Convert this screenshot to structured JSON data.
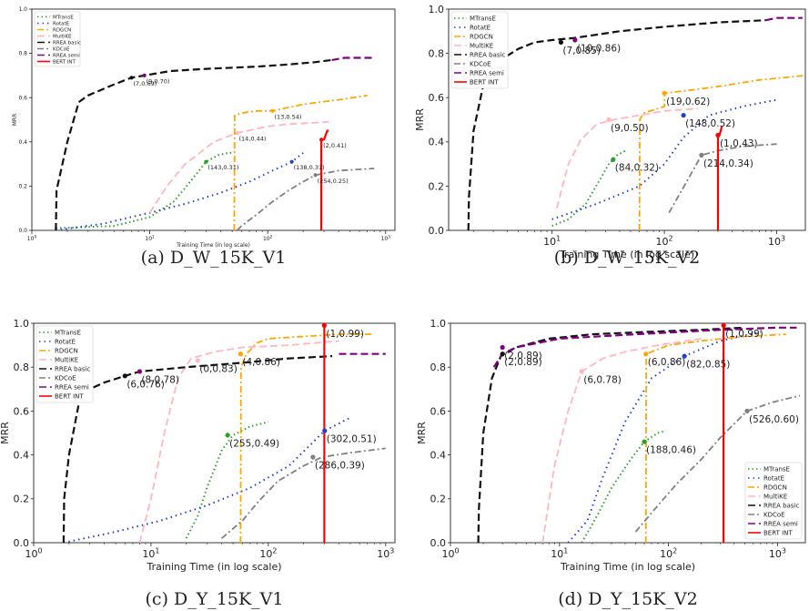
{
  "legend_labels": [
    "MTransE",
    "RotatE",
    "RDGCN",
    "MultiKE",
    "RREA basic",
    "KDCoE",
    "RREA semi",
    "BERT INT"
  ],
  "series_colors": {
    "MTransE": "#2ca02c",
    "RotatE": "#1f3fd6",
    "RDGCN": "#ffa500",
    "MultiKE": "#ffb6c1",
    "RREA basic": "#111111",
    "KDCoE": "#808080",
    "RREA semi": "#800080",
    "BERT INT": "#ff0000"
  },
  "chart_data": [
    {
      "type": "line",
      "caption": "(a) D_W_15K_V1",
      "xlabel": "Training Time (in log scale)",
      "ylabel": "MRR",
      "xscale": "log",
      "xlim": [
        1,
        1200
      ],
      "ylim": [
        0,
        1.0
      ],
      "yticks": [
        "0.0",
        "0.2",
        "0.4",
        "0.6",
        "0.8",
        "1.0"
      ],
      "xticks": [
        "10^0",
        "10^1",
        "10^2",
        "10^3"
      ],
      "legend": "top-left",
      "series": [
        {
          "name": "MTransE",
          "x": [
            1.6,
            5,
            10,
            16,
            22,
            30,
            38,
            46,
            52
          ],
          "y": [
            0.01,
            0.02,
            0.06,
            0.13,
            0.22,
            0.31,
            0.34,
            0.35,
            0.35
          ]
        },
        {
          "name": "RotatE",
          "x": [
            1.6,
            4,
            10,
            20,
            40,
            70,
            110,
            160,
            200
          ],
          "y": [
            0.0,
            0.03,
            0.08,
            0.12,
            0.17,
            0.22,
            0.27,
            0.31,
            0.35
          ]
        },
        {
          "name": "RDGCN",
          "x": [
            52,
            52.5,
            60,
            80,
            110,
            200,
            400,
            700
          ],
          "y": [
            0.0,
            0.52,
            0.53,
            0.54,
            0.54,
            0.57,
            0.59,
            0.61
          ]
        },
        {
          "name": "MultiKE",
          "x": [
            10,
            14,
            20,
            35,
            55,
            100,
            150,
            330
          ],
          "y": [
            0.08,
            0.2,
            0.3,
            0.4,
            0.44,
            0.47,
            0.48,
            0.49
          ]
        },
        {
          "name": "RREA basic",
          "x": [
            1.6,
            1.62,
            2,
            2.5,
            3,
            5,
            7,
            9,
            15,
            30,
            80,
            150,
            250,
            350
          ],
          "y": [
            0.0,
            0.18,
            0.4,
            0.58,
            0.61,
            0.66,
            0.69,
            0.7,
            0.72,
            0.73,
            0.74,
            0.75,
            0.76,
            0.77
          ]
        },
        {
          "name": "KDCoE",
          "x": [
            55,
            60,
            80,
            110,
            150,
            200,
            254,
            400,
            800
          ],
          "y": [
            0.0,
            0.02,
            0.07,
            0.13,
            0.18,
            0.22,
            0.25,
            0.27,
            0.28
          ]
        },
        {
          "name": "RREA semi",
          "x": [
            350,
            450,
            600,
            800
          ],
          "y": [
            0.77,
            0.78,
            0.78,
            0.78
          ]
        },
        {
          "name": "BERT INT",
          "x": [
            285,
            285,
            300,
            310,
            320,
            330
          ],
          "y": [
            0.0,
            0.41,
            0.41,
            0.43,
            0.45,
            0.45
          ]
        }
      ],
      "annotations": [
        {
          "text": "(9,0.70)",
          "x": 9,
          "y": 0.7,
          "color": "#800080"
        },
        {
          "text": "(7,0.69)",
          "x": 7,
          "y": 0.69,
          "color": "#111111"
        },
        {
          "text": "(13,0.54)",
          "x": 110,
          "y": 0.54,
          "color": "#ffa500"
        },
        {
          "text": "(14,0.44)",
          "x": 55,
          "y": 0.44,
          "color": "#ffb6c1"
        },
        {
          "text": "(2,0.41)",
          "x": 285,
          "y": 0.41,
          "color": "#ff0000"
        },
        {
          "text": "(143,0.31)",
          "x": 30,
          "y": 0.31,
          "color": "#2ca02c"
        },
        {
          "text": "(138,0.31)",
          "x": 160,
          "y": 0.31,
          "color": "#1f3fd6"
        },
        {
          "text": "(254,0.25)",
          "x": 254,
          "y": 0.25,
          "color": "#808080"
        }
      ]
    },
    {
      "type": "line",
      "caption": "(b) D_W_15K_V2",
      "xlabel": "Training Time (in log scale)",
      "ylabel": "MRR",
      "xscale": "log",
      "xlim": [
        1.2,
        1800
      ],
      "ylim": [
        0,
        1.0
      ],
      "yticks": [
        "0.0",
        "0.2",
        "0.4",
        "0.6",
        "0.8",
        "1.0"
      ],
      "xticks": [
        "10^1",
        "10^2",
        "10^3"
      ],
      "legend": "top-left",
      "series": [
        {
          "name": "MTransE",
          "x": [
            10,
            14,
            20,
            26,
            32,
            38,
            45
          ],
          "y": [
            0.02,
            0.05,
            0.12,
            0.22,
            0.3,
            0.34,
            0.36
          ]
        },
        {
          "name": "RotatE",
          "x": [
            10,
            25,
            60,
            100,
            148,
            250,
            500,
            1000
          ],
          "y": [
            0.05,
            0.12,
            0.2,
            0.3,
            0.42,
            0.52,
            0.56,
            0.59
          ]
        },
        {
          "name": "RDGCN",
          "x": [
            60,
            60.5,
            65,
            100,
            100.5,
            150,
            300,
            700,
            1800
          ],
          "y": [
            0.0,
            0.5,
            0.53,
            0.56,
            0.62,
            0.63,
            0.65,
            0.68,
            0.7
          ]
        },
        {
          "name": "MultiKE",
          "x": [
            11,
            14,
            18,
            25,
            35,
            60,
            100,
            200
          ],
          "y": [
            0.1,
            0.3,
            0.41,
            0.48,
            0.5,
            0.52,
            0.54,
            0.55
          ]
        },
        {
          "name": "RREA basic",
          "x": [
            1.8,
            1.82,
            2,
            2.5,
            3,
            5,
            7,
            10,
            16,
            40,
            100,
            300,
            800
          ],
          "y": [
            0.0,
            0.15,
            0.45,
            0.68,
            0.75,
            0.82,
            0.85,
            0.86,
            0.87,
            0.9,
            0.92,
            0.94,
            0.95
          ]
        },
        {
          "name": "KDCoE",
          "x": [
            110,
            150,
            214,
            300,
            500,
            1000
          ],
          "y": [
            0.08,
            0.2,
            0.34,
            0.36,
            0.38,
            0.39
          ]
        },
        {
          "name": "RREA semi",
          "x": [
            800,
            1000,
            1300,
            1700
          ],
          "y": [
            0.95,
            0.96,
            0.96,
            0.96
          ]
        },
        {
          "name": "BERT INT",
          "x": [
            300,
            300,
            310,
            325
          ],
          "y": [
            0.0,
            0.43,
            0.43,
            0.47
          ]
        }
      ],
      "annotations": [
        {
          "text": "(10,0.86)",
          "x": 16,
          "y": 0.86,
          "color": "#800080"
        },
        {
          "text": "(7,0.85)",
          "x": 12,
          "y": 0.85,
          "color": "#111111"
        },
        {
          "text": "(19,0.62)",
          "x": 100,
          "y": 0.62,
          "color": "#ffa500"
        },
        {
          "text": "(9,0.50)",
          "x": 32,
          "y": 0.5,
          "color": "#ffb6c1"
        },
        {
          "text": "(148,0.52)",
          "x": 148,
          "y": 0.52,
          "color": "#1f3fd6"
        },
        {
          "text": "(1,0.43)",
          "x": 300,
          "y": 0.43,
          "color": "#ff0000"
        },
        {
          "text": "(84,0.32)",
          "x": 35,
          "y": 0.32,
          "color": "#2ca02c"
        },
        {
          "text": "(214,0.34)",
          "x": 214,
          "y": 0.34,
          "color": "#808080"
        }
      ]
    },
    {
      "type": "line",
      "caption": "(c) D_Y_15K_V1",
      "xlabel": "Training Time (in log scale)",
      "ylabel": "MRR",
      "xscale": "log",
      "xlim": [
        1,
        1200
      ],
      "ylim": [
        0,
        1.0
      ],
      "yticks": [
        "0.0",
        "0.2",
        "0.4",
        "0.6",
        "0.8",
        "1.0"
      ],
      "xticks": [
        "10^0",
        "10^1",
        "10^2",
        "10^3"
      ],
      "legend": "top-left",
      "series": [
        {
          "name": "MTransE",
          "x": [
            20,
            25,
            30,
            40,
            50,
            70,
            100
          ],
          "y": [
            0.02,
            0.12,
            0.25,
            0.42,
            0.49,
            0.53,
            0.55
          ]
        },
        {
          "name": "RotatE",
          "x": [
            1.8,
            5,
            12,
            30,
            70,
            150,
            302,
            500
          ],
          "y": [
            0.0,
            0.05,
            0.1,
            0.17,
            0.25,
            0.35,
            0.51,
            0.57
          ]
        },
        {
          "name": "RDGCN",
          "x": [
            58,
            58.5,
            65,
            80,
            100,
            200,
            400,
            800
          ],
          "y": [
            0.0,
            0.8,
            0.86,
            0.91,
            0.93,
            0.94,
            0.95,
            0.95
          ]
        },
        {
          "name": "MultiKE",
          "x": [
            8,
            10,
            13,
            17,
            22,
            35,
            60,
            150,
            400
          ],
          "y": [
            0.0,
            0.2,
            0.5,
            0.75,
            0.84,
            0.87,
            0.89,
            0.9,
            0.92
          ]
        },
        {
          "name": "RREA basic",
          "x": [
            1.8,
            1.82,
            2,
            2.5,
            3,
            4,
            6,
            8,
            20,
            60,
            150,
            350
          ],
          "y": [
            0.0,
            0.2,
            0.4,
            0.67,
            0.7,
            0.73,
            0.76,
            0.78,
            0.8,
            0.82,
            0.84,
            0.85
          ]
        },
        {
          "name": "KDCoE",
          "x": [
            40,
            60,
            80,
            120,
            200,
            286,
            500,
            1000
          ],
          "y": [
            0.02,
            0.1,
            0.18,
            0.28,
            0.35,
            0.39,
            0.41,
            0.43
          ]
        },
        {
          "name": "RREA semi",
          "x": [
            400,
            550,
            750,
            1000
          ],
          "y": [
            0.86,
            0.86,
            0.86,
            0.86
          ]
        },
        {
          "name": "BERT INT",
          "x": [
            300,
            300
          ],
          "y": [
            0.0,
            0.99
          ]
        }
      ],
      "annotations": [
        {
          "text": "(1,0.99)",
          "x": 300,
          "y": 0.99,
          "color": "#ff0000"
        },
        {
          "text": "(4,0.86)",
          "x": 58,
          "y": 0.86,
          "color": "#ffa500"
        },
        {
          "text": "(0,0.83)",
          "x": 25,
          "y": 0.83,
          "color": "#ffb6c1"
        },
        {
          "text": "(8,0.78)",
          "x": 8,
          "y": 0.78,
          "color": "#800080"
        },
        {
          "text": "(6,0.76)",
          "x": 6,
          "y": 0.76,
          "color": "#111111"
        },
        {
          "text": "(255,0.49)",
          "x": 45,
          "y": 0.49,
          "color": "#2ca02c"
        },
        {
          "text": "(302,0.51)",
          "x": 302,
          "y": 0.51,
          "color": "#1f3fd6"
        },
        {
          "text": "(286,0.39)",
          "x": 240,
          "y": 0.39,
          "color": "#808080"
        }
      ]
    },
    {
      "type": "line",
      "caption": "(d) D_Y_15K_V2",
      "xlabel": "Training Time (in log scale)",
      "ylabel": "MRR",
      "xscale": "log",
      "xlim": [
        1,
        1800
      ],
      "ylim": [
        0,
        1.0
      ],
      "yticks": [
        "0.0",
        "0.2",
        "0.4",
        "0.6",
        "0.8",
        "1.0"
      ],
      "xticks": [
        "10^0",
        "10^1",
        "10^2",
        "10^3"
      ],
      "legend": "bottom-right",
      "series": [
        {
          "name": "MTransE",
          "x": [
            16,
            22,
            30,
            45,
            60,
            80,
            95
          ],
          "y": [
            0.0,
            0.12,
            0.25,
            0.38,
            0.46,
            0.5,
            0.51
          ]
        },
        {
          "name": "RotatE",
          "x": [
            12,
            18,
            25,
            40,
            70,
            140,
            300,
            700
          ],
          "y": [
            0.0,
            0.1,
            0.3,
            0.55,
            0.75,
            0.85,
            0.92,
            0.96
          ]
        },
        {
          "name": "RDGCN",
          "x": [
            62,
            62.5,
            70,
            100,
            200,
            500,
            1200
          ],
          "y": [
            0.0,
            0.86,
            0.87,
            0.9,
            0.92,
            0.94,
            0.95
          ]
        },
        {
          "name": "MultiKE",
          "x": [
            7,
            9,
            12,
            16,
            25,
            40,
            80,
            200
          ],
          "y": [
            0.0,
            0.35,
            0.6,
            0.78,
            0.84,
            0.87,
            0.9,
            0.93
          ]
        },
        {
          "name": "RREA basic",
          "x": [
            1.8,
            1.82,
            2,
            2.4,
            2.9,
            4,
            8,
            20,
            60,
            200,
            500
          ],
          "y": [
            0.0,
            0.15,
            0.5,
            0.75,
            0.85,
            0.89,
            0.93,
            0.95,
            0.96,
            0.97,
            0.98
          ]
        },
        {
          "name": "KDCoE",
          "x": [
            50,
            80,
            120,
            200,
            300,
            526,
            900,
            1600
          ],
          "y": [
            0.05,
            0.17,
            0.27,
            0.38,
            0.48,
            0.6,
            0.64,
            0.67
          ]
        },
        {
          "name": "RREA semi",
          "x": [
            2.5,
            3,
            4,
            10,
            50,
            300,
            1000,
            1500
          ],
          "y": [
            0.8,
            0.86,
            0.89,
            0.93,
            0.95,
            0.97,
            0.98,
            0.98
          ]
        },
        {
          "name": "BERT INT",
          "x": [
            320,
            320
          ],
          "y": [
            0.0,
            0.99
          ]
        }
      ],
      "annotations": [
        {
          "text": "(1,0.99)",
          "x": 320,
          "y": 0.99,
          "color": "#ff0000"
        },
        {
          "text": "(2,0.89)",
          "x": 3,
          "y": 0.89,
          "color": "#800080"
        },
        {
          "text": "(2,0.89)",
          "x": 3,
          "y": 0.86,
          "color": "#111111"
        },
        {
          "text": "(6,0.86)",
          "x": 62,
          "y": 0.86,
          "color": "#ffa500"
        },
        {
          "text": "(82,0.85)",
          "x": 140,
          "y": 0.85,
          "color": "#1f3fd6"
        },
        {
          "text": "(6,0.78)",
          "x": 16,
          "y": 0.78,
          "color": "#ffb6c1"
        },
        {
          "text": "(526,0.60)",
          "x": 526,
          "y": 0.6,
          "color": "#808080"
        },
        {
          "text": "(188,0.46)",
          "x": 60,
          "y": 0.46,
          "color": "#2ca02c"
        }
      ]
    }
  ]
}
